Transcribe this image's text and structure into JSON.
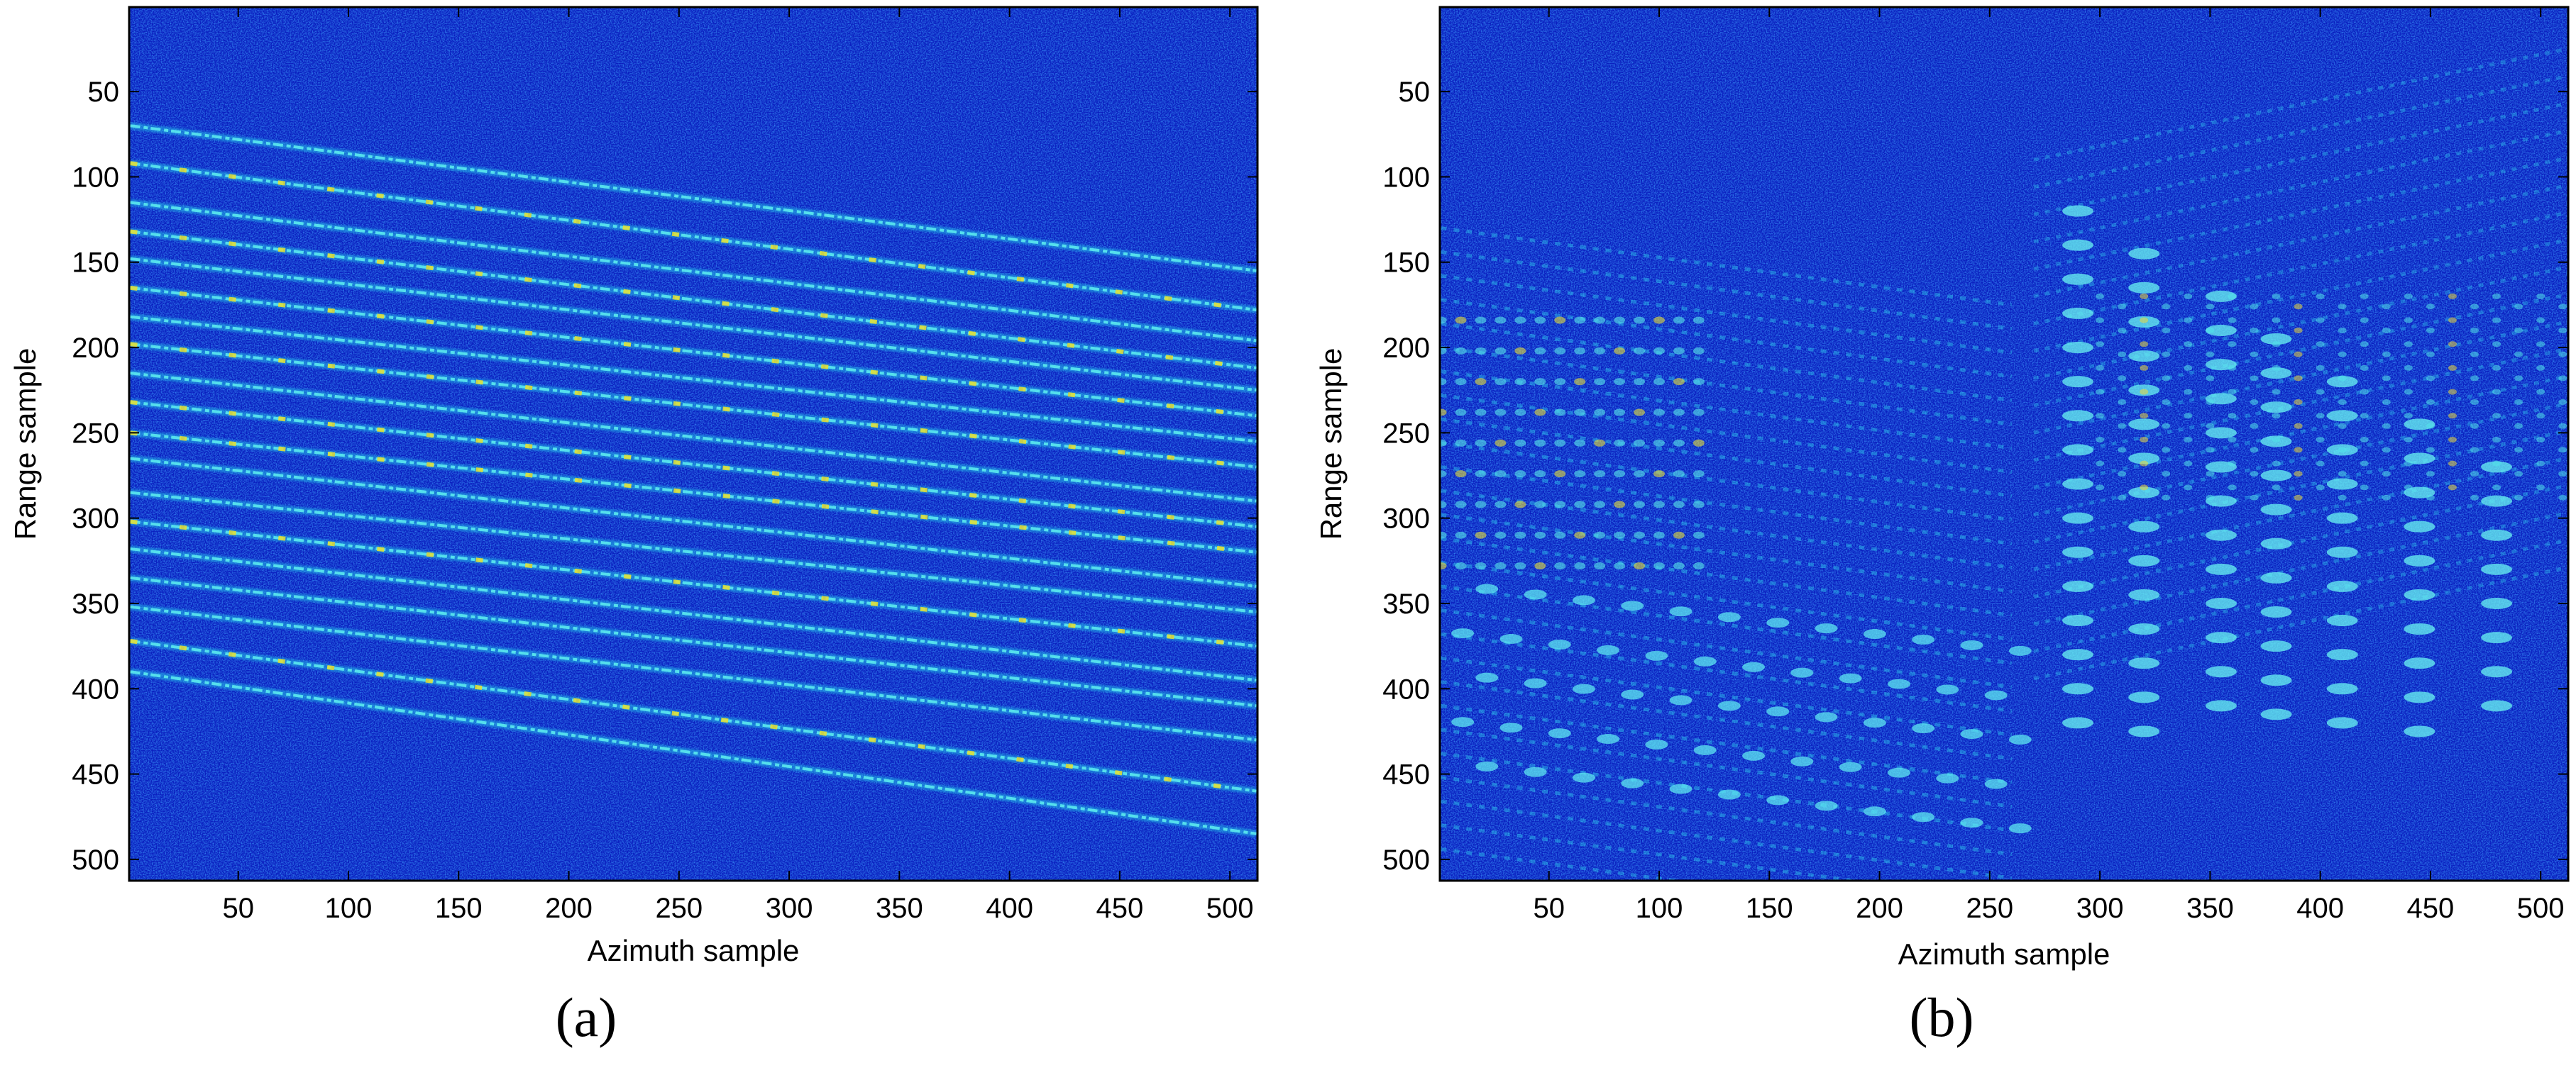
{
  "chart_data": [
    {
      "type": "heatmap",
      "panel_label": "(a)",
      "xlabel": "Azimuth sample",
      "ylabel": "Range sample",
      "xlim": [
        1,
        512
      ],
      "ylim": [
        512,
        1
      ],
      "y_reversed": true,
      "xticks": [
        50,
        100,
        150,
        200,
        250,
        300,
        350,
        400,
        450,
        500
      ],
      "yticks": [
        50,
        100,
        150,
        200,
        250,
        300,
        350,
        400,
        450,
        500
      ],
      "colormap": "jet",
      "background_color": "#0a1fbf",
      "description_values": {
        "streak_count": 19,
        "streak_start_range": [
          70,
          92,
          115,
          132,
          148,
          165,
          182,
          198,
          215,
          232,
          250,
          265,
          285,
          302,
          318,
          335,
          352,
          372,
          390
        ],
        "streak_end_range": [
          155,
          178,
          196,
          212,
          225,
          240,
          255,
          270,
          290,
          305,
          320,
          340,
          355,
          375,
          395,
          410,
          430,
          460,
          485
        ],
        "bright_streaks": [
          92,
          132,
          198,
          250
        ]
      }
    },
    {
      "type": "heatmap",
      "panel_label": "(b)",
      "xlabel": "Azimuth sample",
      "ylabel": "Range sample",
      "xlim": [
        1,
        512
      ],
      "ylim": [
        512,
        1
      ],
      "y_reversed": true,
      "xticks": [
        50,
        100,
        150,
        200,
        250,
        300,
        350,
        400,
        450,
        500
      ],
      "yticks": [
        50,
        100,
        150,
        200,
        250,
        300,
        350,
        400,
        450,
        500
      ],
      "colormap": "jet",
      "background_color": "#0a1fbf",
      "description_values": {
        "left_region_azimuth": [
          1,
          260
        ],
        "left_region_range": [
          130,
          500
        ],
        "right_region_azimuth": [
          270,
          512
        ],
        "right_region_range": [
          70,
          440
        ]
      }
    }
  ]
}
